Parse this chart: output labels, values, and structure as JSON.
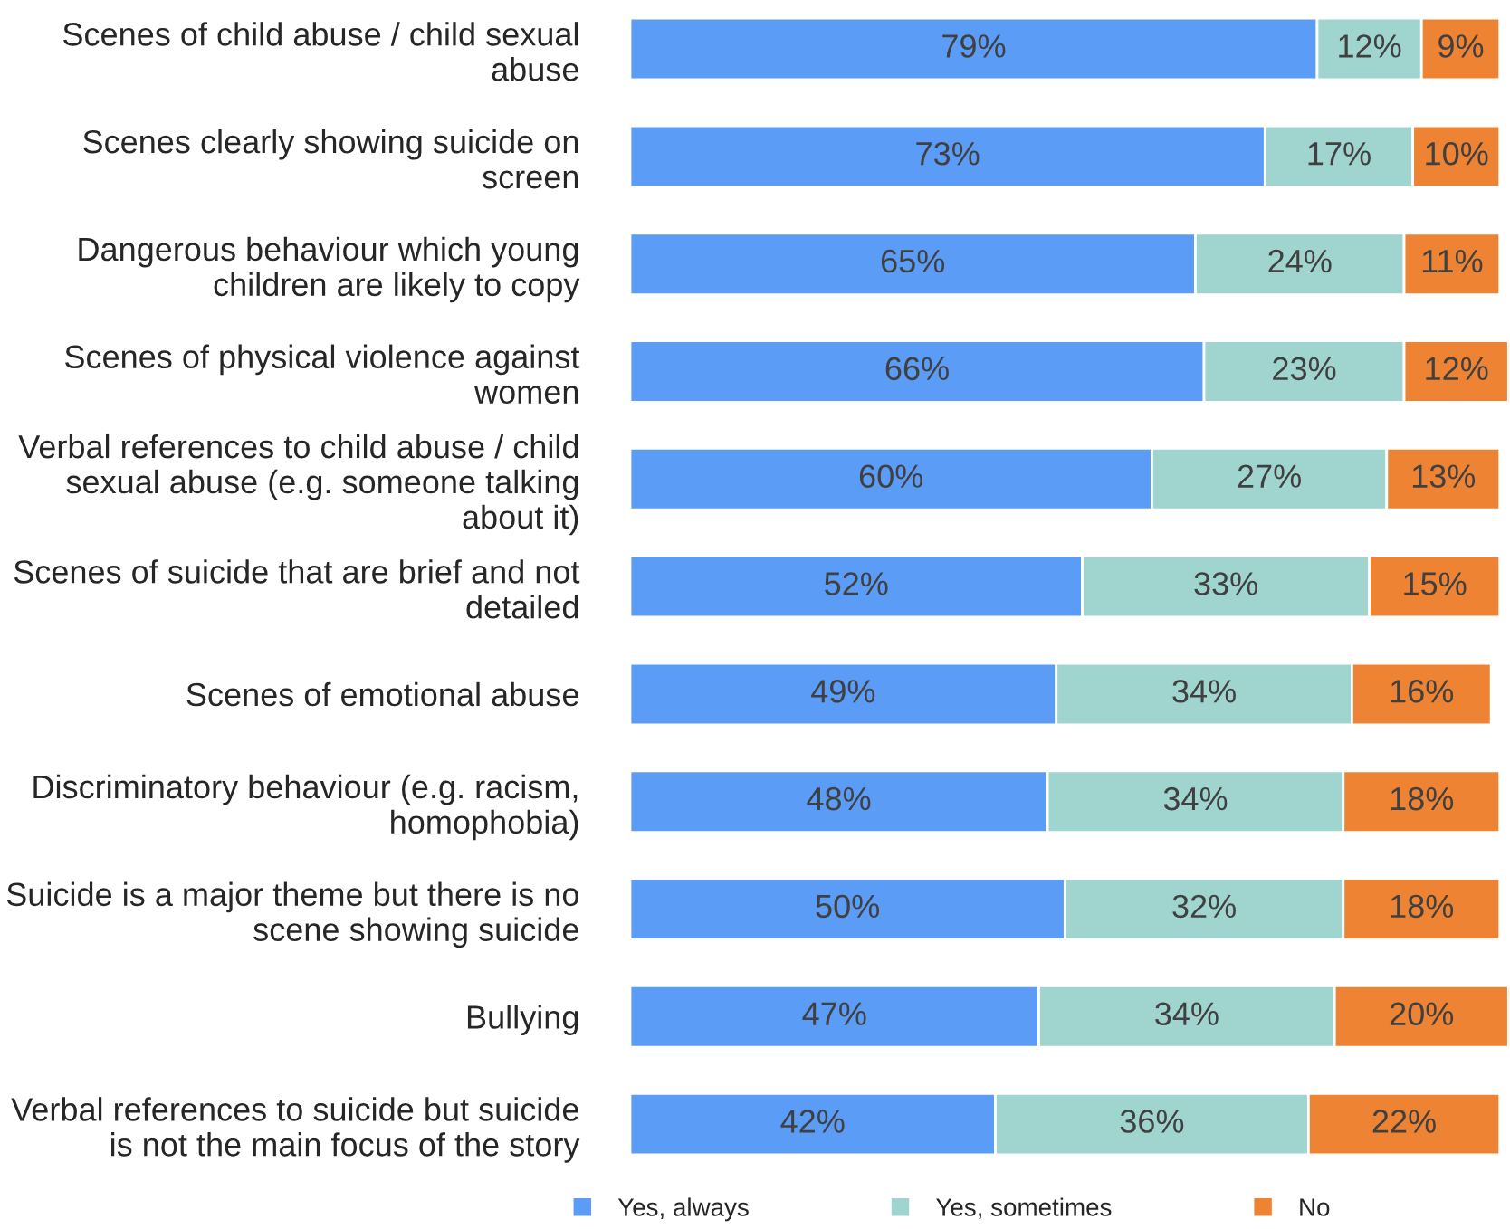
{
  "chart_data": {
    "type": "bar",
    "orientation": "horizontal",
    "stacked": true,
    "categories": [
      "Scenes of child abuse / child sexual\nabuse",
      "Scenes clearly showing suicide on\nscreen",
      "Dangerous behaviour which young\nchildren are likely to copy",
      "Scenes of physical violence against\nwomen",
      "Verbal references to child abuse / child\nsexual abuse (e.g. someone talking\nabout it)",
      "Scenes of suicide that are brief and not\ndetailed",
      "Scenes of emotional abuse",
      "Discriminatory behaviour (e.g. racism,\nhomophobia)",
      "Suicide is a major theme but there is no\nscene showing suicide",
      "Bullying",
      "Verbal references to suicide but suicide\nis not the main focus of the story"
    ],
    "series": [
      {
        "name": "Yes, always",
        "color": "#5b9cf6",
        "values": [
          79,
          73,
          65,
          66,
          60,
          52,
          49,
          48,
          50,
          47,
          42
        ],
        "value_labels": [
          "79%",
          "73%",
          "65%",
          "66%",
          "60%",
          "52%",
          "49%",
          "48%",
          "50%",
          "47%",
          "42%"
        ]
      },
      {
        "name": "Yes, sometimes",
        "color": "#9fd4cf",
        "values": [
          12,
          17,
          24,
          23,
          27,
          33,
          34,
          34,
          32,
          34,
          36
        ],
        "value_labels": [
          "12%",
          "17%",
          "24%",
          "23%",
          "27%",
          "33%",
          "34%",
          "34%",
          "32%",
          "34%",
          "36%"
        ]
      },
      {
        "name": "No",
        "color": "#ee8433",
        "values": [
          9,
          10,
          11,
          12,
          13,
          15,
          16,
          18,
          18,
          20,
          22
        ],
        "value_labels": [
          "9%",
          "10%",
          "11%",
          "12%",
          "13%",
          "15%",
          "16%",
          "18%",
          "18%",
          "20%",
          "22%"
        ]
      }
    ],
    "xlim": [
      0,
      101
    ],
    "tick_labels": "y",
    "grid": false,
    "legend": "bottom"
  }
}
